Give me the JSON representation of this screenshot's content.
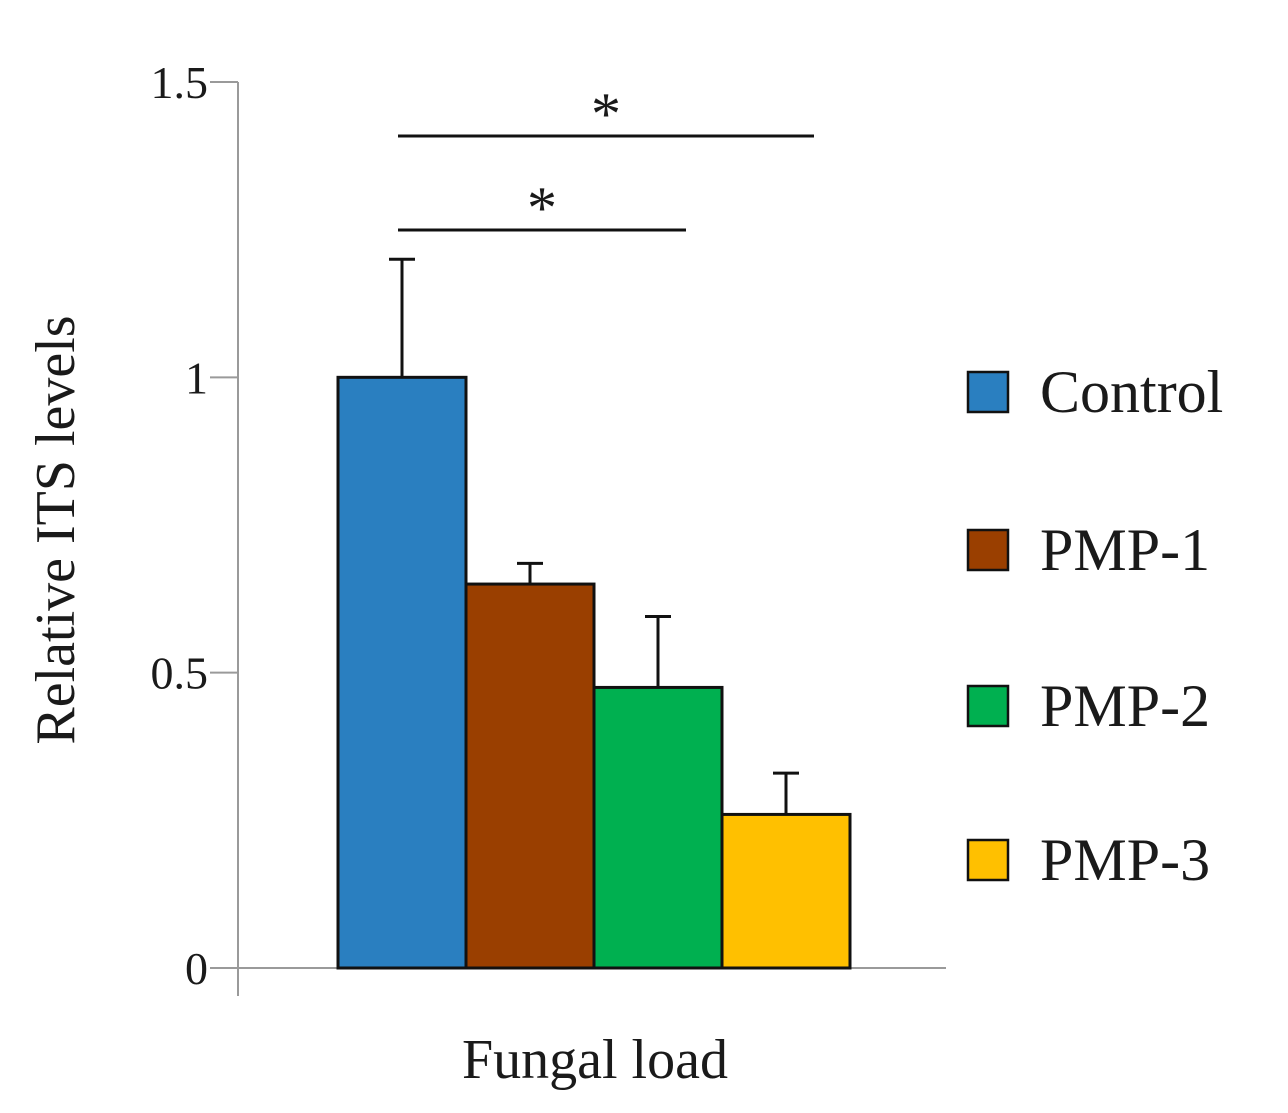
{
  "chart_data": {
    "type": "bar",
    "title": "",
    "xlabel": "Fungal load",
    "ylabel": "Relative ITS levels",
    "categories": [
      "Fungal load"
    ],
    "ylim": [
      0,
      1.5
    ],
    "yticks": [
      0,
      0.5,
      1,
      1.5
    ],
    "ytick_labels": [
      "0",
      "0.5",
      "1",
      "1.5"
    ],
    "grid": false,
    "legend_position": "right",
    "series": [
      {
        "name": "Control",
        "values": [
          1.0
        ],
        "error": [
          0.2
        ],
        "color": "#2a7fc0"
      },
      {
        "name": "PMP-1",
        "values": [
          0.65
        ],
        "error": [
          0.035
        ],
        "color": "#9a3f00"
      },
      {
        "name": "PMP-2",
        "values": [
          0.475
        ],
        "error": [
          0.12
        ],
        "color": "#00b050"
      },
      {
        "name": "PMP-3",
        "values": [
          0.26
        ],
        "error": [
          0.07
        ],
        "color": "#ffc000"
      }
    ],
    "annotations": [
      {
        "text": "*",
        "from": "Control",
        "to": "PMP-3",
        "level": 2
      },
      {
        "text": "*",
        "from": "Control",
        "to": "PMP-2",
        "level": 1
      }
    ]
  }
}
